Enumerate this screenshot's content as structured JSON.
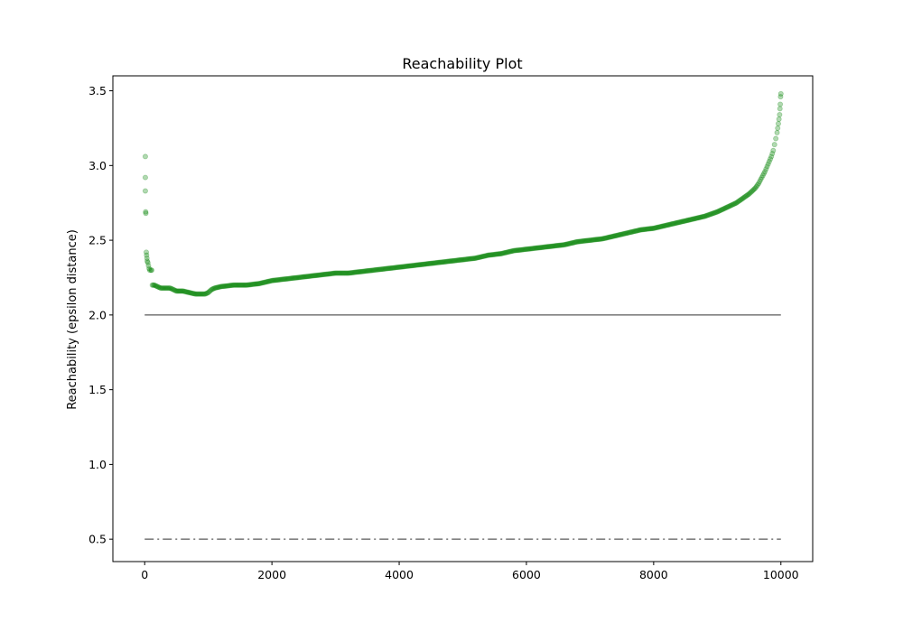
{
  "chart_data": {
    "type": "scatter",
    "title": "Reachability Plot",
    "xlabel": "",
    "ylabel": "Reachability (epsilon distance)",
    "xlim": [
      -500,
      10500
    ],
    "ylim": [
      0.35,
      3.6
    ],
    "x_ticks": [
      0,
      2000,
      4000,
      6000,
      8000,
      10000
    ],
    "x_tick_labels": [
      "0",
      "2000",
      "4000",
      "6000",
      "8000",
      "10000"
    ],
    "y_ticks": [
      0.5,
      1.0,
      1.5,
      2.0,
      2.5,
      3.0,
      3.5
    ],
    "y_tick_labels": [
      "0.5",
      "1.0",
      "1.5",
      "2.0",
      "2.5",
      "3.0",
      "3.5"
    ],
    "grid": false,
    "legend": "none",
    "series": [
      {
        "marker_color": "#008000",
        "marker_alpha": 0.3,
        "points": [
          [
            10,
            3.06
          ],
          [
            10,
            2.92
          ],
          [
            10,
            2.83
          ],
          [
            15,
            2.69
          ],
          [
            18,
            2.68
          ],
          [
            25,
            2.42
          ],
          [
            30,
            2.4
          ],
          [
            35,
            2.38
          ],
          [
            40,
            2.36
          ],
          [
            50,
            2.35
          ],
          [
            60,
            2.33
          ],
          [
            70,
            2.31
          ],
          [
            80,
            2.3
          ],
          [
            100,
            2.3
          ],
          [
            110,
            2.3
          ],
          [
            120,
            2.2
          ],
          [
            150,
            2.2
          ],
          [
            200,
            2.19
          ],
          [
            250,
            2.18
          ],
          [
            300,
            2.18
          ],
          [
            400,
            2.18
          ],
          [
            450,
            2.17
          ],
          [
            500,
            2.16
          ],
          [
            600,
            2.16
          ],
          [
            700,
            2.15
          ],
          [
            800,
            2.14
          ],
          [
            900,
            2.14
          ],
          [
            950,
            2.14
          ],
          [
            1000,
            2.15
          ],
          [
            1050,
            2.17
          ],
          [
            1100,
            2.18
          ],
          [
            1200,
            2.19
          ],
          [
            1400,
            2.2
          ],
          [
            1600,
            2.2
          ],
          [
            1800,
            2.21
          ],
          [
            2000,
            2.23
          ],
          [
            2200,
            2.24
          ],
          [
            2400,
            2.25
          ],
          [
            2600,
            2.26
          ],
          [
            2800,
            2.27
          ],
          [
            3000,
            2.28
          ],
          [
            3200,
            2.28
          ],
          [
            3400,
            2.29
          ],
          [
            3600,
            2.3
          ],
          [
            3800,
            2.31
          ],
          [
            4000,
            2.32
          ],
          [
            4200,
            2.33
          ],
          [
            4400,
            2.34
          ],
          [
            4600,
            2.35
          ],
          [
            4800,
            2.36
          ],
          [
            5000,
            2.37
          ],
          [
            5200,
            2.38
          ],
          [
            5400,
            2.4
          ],
          [
            5600,
            2.41
          ],
          [
            5800,
            2.43
          ],
          [
            6000,
            2.44
          ],
          [
            6200,
            2.45
          ],
          [
            6400,
            2.46
          ],
          [
            6600,
            2.47
          ],
          [
            6800,
            2.49
          ],
          [
            7000,
            2.5
          ],
          [
            7200,
            2.51
          ],
          [
            7400,
            2.53
          ],
          [
            7600,
            2.55
          ],
          [
            7800,
            2.57
          ],
          [
            8000,
            2.58
          ],
          [
            8200,
            2.6
          ],
          [
            8400,
            2.62
          ],
          [
            8600,
            2.64
          ],
          [
            8800,
            2.66
          ],
          [
            9000,
            2.69
          ],
          [
            9200,
            2.73
          ],
          [
            9300,
            2.75
          ],
          [
            9400,
            2.78
          ],
          [
            9500,
            2.81
          ],
          [
            9600,
            2.85
          ],
          [
            9650,
            2.88
          ],
          [
            9700,
            2.92
          ],
          [
            9750,
            2.96
          ],
          [
            9800,
            3.01
          ],
          [
            9850,
            3.06
          ],
          [
            9880,
            3.1
          ],
          [
            9900,
            3.14
          ],
          [
            9920,
            3.18
          ],
          [
            9940,
            3.22
          ],
          [
            9950,
            3.25
          ],
          [
            9960,
            3.28
          ],
          [
            9970,
            3.31
          ],
          [
            9980,
            3.34
          ],
          [
            9985,
            3.38
          ],
          [
            9990,
            3.41
          ],
          [
            9995,
            3.46
          ],
          [
            10000,
            3.48
          ]
        ]
      }
    ],
    "reference_lines": [
      {
        "y": 2.0,
        "x_range": [
          0,
          10000
        ],
        "color": "#808080",
        "style": "solid"
      },
      {
        "y": 0.5,
        "x_range": [
          0,
          10000
        ],
        "color": "#808080",
        "style": "dashdot"
      }
    ]
  }
}
